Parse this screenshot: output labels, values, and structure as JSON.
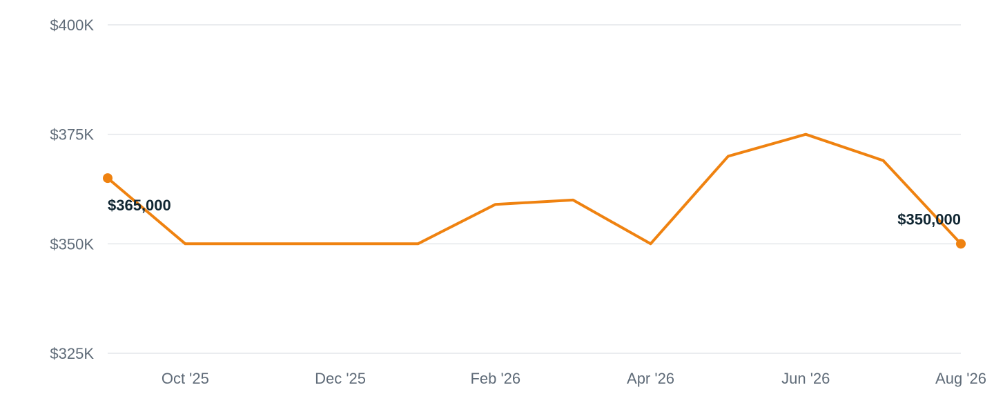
{
  "chart_data": {
    "type": "line",
    "x": [
      "2025-09",
      "2025-10",
      "2025-11",
      "2025-12",
      "2026-01",
      "2026-02",
      "2026-03",
      "2026-04",
      "2026-05",
      "2026-06",
      "2026-07",
      "2026-08"
    ],
    "series": [
      {
        "values": [
          365000,
          350000,
          350000,
          350000,
          350000,
          359000,
          360000,
          350000,
          370000,
          375000,
          369000,
          350000
        ]
      }
    ],
    "ylim": [
      325000,
      400000
    ],
    "y_ticks": [
      "$325K",
      "$350K",
      "$375K",
      "$400K"
    ],
    "y_tick_values": [
      325000,
      350000,
      375000,
      400000
    ],
    "x_tick_labels": [
      "Oct '25",
      "Dec '25",
      "Feb '26",
      "Apr '26",
      "Jun '26",
      "Aug '26"
    ],
    "x_tick_months": [
      "2025-10",
      "2025-12",
      "2026-02",
      "2026-04",
      "2026-06",
      "2026-08"
    ],
    "data_labels": [
      {
        "x": "2025-09",
        "text": "$365,000"
      },
      {
        "x": "2026-08",
        "text": "$350,000"
      }
    ],
    "grid": true,
    "line_color": "#ef8210",
    "marker_color": "#ef8210"
  }
}
